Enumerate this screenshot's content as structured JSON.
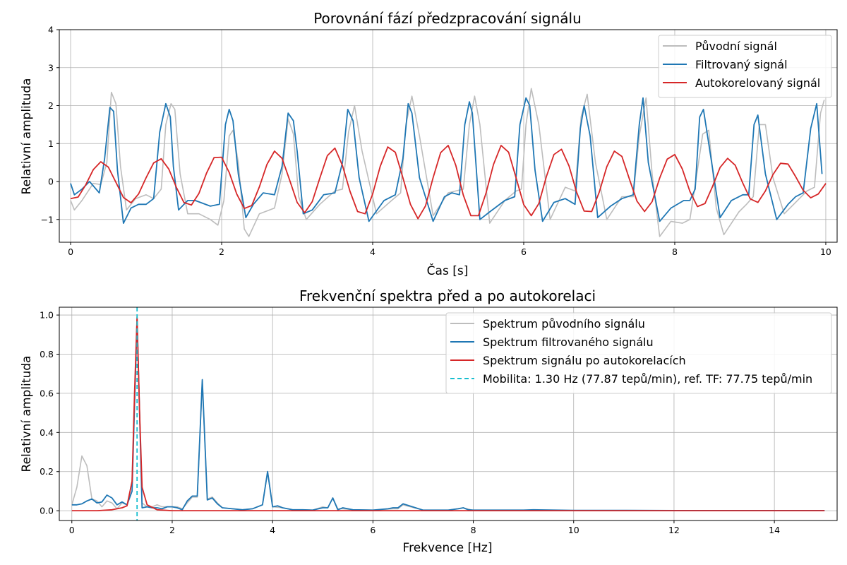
{
  "chart_data": [
    {
      "type": "line",
      "title": "Porovnání fází předzpracování signálu",
      "xlabel": "Čas [s]",
      "ylabel": "Relativní amplituda",
      "xlim": [
        -0.15,
        10.15
      ],
      "ylim": [
        -1.6,
        4.0
      ],
      "x_ticks": [
        0,
        2,
        4,
        6,
        8,
        10
      ],
      "y_ticks": [
        -1,
        0,
        1,
        2,
        3,
        4
      ],
      "x_tick_labels": [
        "0",
        "2",
        "4",
        "6",
        "8",
        "10"
      ],
      "y_tick_labels": [
        "−1",
        "0",
        "1",
        "2",
        "3",
        "4"
      ],
      "grid": true,
      "legend_position": "top-right",
      "series": [
        {
          "name": "Původní signál",
          "color": "#bdbdbd",
          "x": [
            0.0,
            0.05,
            0.15,
            0.3,
            0.4,
            0.48,
            0.54,
            0.6,
            0.66,
            0.74,
            0.86,
            1.0,
            1.1,
            1.2,
            1.26,
            1.33,
            1.38,
            1.45,
            1.55,
            1.7,
            1.85,
            1.95,
            2.03,
            2.1,
            2.15,
            2.22,
            2.3,
            2.36,
            2.5,
            2.7,
            2.8,
            2.88,
            2.95,
            3.02,
            3.12,
            3.3,
            3.5,
            3.6,
            3.68,
            3.76,
            3.86,
            4.05,
            4.25,
            4.37,
            4.44,
            4.52,
            4.62,
            4.8,
            5.0,
            5.1,
            5.2,
            5.28,
            5.35,
            5.42,
            5.55,
            5.75,
            5.9,
            5.97,
            6.03,
            6.1,
            6.2,
            6.35,
            6.55,
            6.68,
            6.76,
            6.84,
            6.95,
            7.1,
            7.3,
            7.45,
            7.53,
            7.62,
            7.7,
            7.8,
            7.95,
            8.1,
            8.2,
            8.3,
            8.37,
            8.45,
            8.55,
            8.65,
            8.85,
            8.95,
            9.04,
            9.12,
            9.2,
            9.3,
            9.45,
            9.6,
            9.75,
            9.85,
            9.93,
            9.98
          ],
          "y": [
            -0.5,
            -0.75,
            -0.5,
            -0.05,
            -0.08,
            0.5,
            2.35,
            2.05,
            0.4,
            -0.75,
            -0.45,
            -0.35,
            -0.45,
            -0.2,
            1.5,
            2.05,
            1.9,
            0.2,
            -0.85,
            -0.85,
            -1.0,
            -1.15,
            -0.5,
            1.2,
            1.35,
            0.5,
            -1.25,
            -1.45,
            -0.85,
            -0.7,
            0.2,
            1.65,
            1.25,
            -0.4,
            -1.0,
            -0.6,
            -0.25,
            -0.2,
            1.3,
            2.0,
            0.8,
            -0.85,
            -0.5,
            -0.3,
            1.5,
            2.25,
            1.2,
            -0.9,
            -0.3,
            -0.25,
            -0.2,
            1.5,
            2.25,
            1.5,
            -1.1,
            -0.5,
            -0.25,
            -0.2,
            1.5,
            2.45,
            1.5,
            -1.0,
            -0.15,
            -0.25,
            1.7,
            2.3,
            0.5,
            -1.0,
            -0.4,
            -0.4,
            1.2,
            2.2,
            0.2,
            -1.45,
            -1.05,
            -1.1,
            -1.0,
            0.3,
            1.25,
            1.35,
            -0.7,
            -1.4,
            -0.8,
            -0.6,
            -0.4,
            1.5,
            1.5,
            0.1,
            -0.85,
            -0.55,
            -0.25,
            -0.15,
            1.8,
            2.15
          ]
        },
        {
          "name": "Filtrovaný signál",
          "color": "#1f77b4",
          "x": [
            0.0,
            0.05,
            0.15,
            0.25,
            0.38,
            0.45,
            0.52,
            0.57,
            0.62,
            0.7,
            0.8,
            0.9,
            1.0,
            1.1,
            1.18,
            1.26,
            1.32,
            1.36,
            1.43,
            1.55,
            1.65,
            1.85,
            1.97,
            2.05,
            2.1,
            2.15,
            2.22,
            2.32,
            2.42,
            2.55,
            2.7,
            2.8,
            2.88,
            2.95,
            3.0,
            3.08,
            3.2,
            3.35,
            3.5,
            3.6,
            3.67,
            3.74,
            3.82,
            3.95,
            4.15,
            4.3,
            4.4,
            4.47,
            4.52,
            4.62,
            4.8,
            4.95,
            5.05,
            5.15,
            5.22,
            5.28,
            5.32,
            5.42,
            5.55,
            5.75,
            5.88,
            5.95,
            6.03,
            6.08,
            6.15,
            6.25,
            6.4,
            6.55,
            6.68,
            6.75,
            6.8,
            6.88,
            6.98,
            7.15,
            7.3,
            7.45,
            7.53,
            7.58,
            7.65,
            7.8,
            7.95,
            8.12,
            8.2,
            8.27,
            8.33,
            8.38,
            8.45,
            8.6,
            8.75,
            8.9,
            8.98,
            9.05,
            9.1,
            9.2,
            9.35,
            9.5,
            9.6,
            9.7,
            9.8,
            9.88,
            9.95
          ],
          "y": [
            -0.05,
            -0.35,
            -0.2,
            0.0,
            -0.3,
            0.6,
            1.95,
            1.85,
            0.3,
            -1.1,
            -0.7,
            -0.6,
            -0.6,
            -0.45,
            1.3,
            2.05,
            1.7,
            0.4,
            -0.75,
            -0.5,
            -0.5,
            -0.65,
            -0.6,
            1.5,
            1.9,
            1.6,
            0.2,
            -0.95,
            -0.6,
            -0.3,
            -0.35,
            0.4,
            1.8,
            1.6,
            0.8,
            -0.85,
            -0.75,
            -0.35,
            -0.3,
            0.5,
            1.9,
            1.6,
            0.1,
            -1.05,
            -0.5,
            -0.35,
            0.6,
            2.05,
            1.8,
            0.1,
            -1.05,
            -0.4,
            -0.3,
            -0.35,
            1.5,
            2.1,
            1.8,
            -1.0,
            -0.8,
            -0.5,
            -0.4,
            1.5,
            2.2,
            2.0,
            0.3,
            -1.05,
            -0.55,
            -0.45,
            -0.6,
            1.4,
            2.0,
            1.2,
            -0.95,
            -0.65,
            -0.45,
            -0.35,
            1.5,
            2.2,
            0.5,
            -1.05,
            -0.7,
            -0.5,
            -0.5,
            -0.2,
            1.7,
            1.9,
            1.0,
            -0.95,
            -0.5,
            -0.35,
            -0.35,
            1.5,
            1.75,
            0.2,
            -1.0,
            -0.6,
            -0.4,
            -0.3,
            1.4,
            2.05,
            0.2
          ]
        },
        {
          "name": "Autokorelovaný signál",
          "color": "#d62728",
          "x": [
            0.0,
            0.1,
            0.2,
            0.3,
            0.4,
            0.5,
            0.6,
            0.7,
            0.8,
            0.9,
            1.0,
            1.1,
            1.2,
            1.3,
            1.4,
            1.5,
            1.6,
            1.7,
            1.8,
            1.9,
            2.0,
            2.1,
            2.2,
            2.3,
            2.4,
            2.5,
            2.6,
            2.7,
            2.8,
            2.9,
            3.0,
            3.1,
            3.2,
            3.3,
            3.4,
            3.5,
            3.6,
            3.7,
            3.8,
            3.9,
            4.0,
            4.1,
            4.2,
            4.3,
            4.4,
            4.5,
            4.6,
            4.7,
            4.8,
            4.9,
            5.0,
            5.1,
            5.2,
            5.3,
            5.4,
            5.5,
            5.6,
            5.7,
            5.8,
            5.9,
            6.0,
            6.1,
            6.2,
            6.3,
            6.4,
            6.5,
            6.6,
            6.7,
            6.8,
            6.9,
            7.0,
            7.1,
            7.2,
            7.3,
            7.4,
            7.5,
            7.6,
            7.7,
            7.8,
            7.9,
            8.0,
            8.1,
            8.2,
            8.3,
            8.4,
            8.5,
            8.6,
            8.7,
            8.8,
            8.9,
            9.0,
            9.1,
            9.2,
            9.3,
            9.4,
            9.5,
            9.6,
            9.7,
            9.8,
            9.9,
            10.0
          ],
          "y": [
            -0.45,
            -0.41,
            -0.09,
            0.31,
            0.52,
            0.38,
            -0.02,
            -0.42,
            -0.56,
            -0.33,
            0.1,
            0.49,
            0.6,
            0.33,
            -0.15,
            -0.55,
            -0.62,
            -0.31,
            0.22,
            0.63,
            0.64,
            0.24,
            -0.33,
            -0.71,
            -0.63,
            -0.14,
            0.45,
            0.8,
            0.61,
            0.04,
            -0.55,
            -0.82,
            -0.53,
            0.09,
            0.68,
            0.88,
            0.42,
            -0.26,
            -0.79,
            -0.85,
            -0.33,
            0.4,
            0.91,
            0.77,
            0.1,
            -0.6,
            -0.98,
            -0.64,
            0.1,
            0.76,
            0.95,
            0.43,
            -0.36,
            -0.9,
            -0.9,
            -0.31,
            0.45,
            0.95,
            0.77,
            0.09,
            -0.61,
            -0.9,
            -0.58,
            0.13,
            0.71,
            0.85,
            0.41,
            -0.28,
            -0.78,
            -0.79,
            -0.28,
            0.39,
            0.8,
            0.66,
            0.06,
            -0.52,
            -0.79,
            -0.53,
            0.09,
            0.59,
            0.71,
            0.33,
            -0.26,
            -0.66,
            -0.58,
            -0.13,
            0.37,
            0.61,
            0.43,
            -0.04,
            -0.46,
            -0.55,
            -0.25,
            0.18,
            0.48,
            0.46,
            0.13,
            -0.23,
            -0.43,
            -0.33,
            -0.05
          ]
        }
      ]
    },
    {
      "type": "line",
      "title": "Frekvenční spektra před a po autokorelaci",
      "xlabel": "Frekvence [Hz]",
      "ylabel": "Relativní amplituda",
      "xlim": [
        -0.25,
        15.25
      ],
      "ylim": [
        -0.05,
        1.04
      ],
      "x_ticks": [
        0,
        2,
        4,
        6,
        8,
        10,
        12,
        14
      ],
      "y_ticks": [
        0.0,
        0.2,
        0.4,
        0.6,
        0.8,
        1.0
      ],
      "x_tick_labels": [
        "0",
        "2",
        "4",
        "6",
        "8",
        "10",
        "12",
        "14"
      ],
      "y_tick_labels": [
        "0.0",
        "0.2",
        "0.4",
        "0.6",
        "0.8",
        "1.0"
      ],
      "grid": true,
      "legend_position": "top-right",
      "series": [
        {
          "name": "Spektrum původního signálu",
          "color": "#bdbdbd",
          "x": [
            0.0,
            0.1,
            0.2,
            0.3,
            0.4,
            0.5,
            0.6,
            0.7,
            0.8,
            0.9,
            1.0,
            1.1,
            1.2,
            1.3,
            1.4,
            1.5,
            1.6,
            1.7,
            1.8,
            1.9,
            2.0,
            2.1,
            2.2,
            2.3,
            2.4,
            2.5,
            2.6,
            2.7,
            2.8,
            2.9,
            3.0,
            3.2,
            3.4,
            3.6,
            3.8,
            3.9,
            4.0,
            4.2,
            4.4,
            4.6,
            4.8,
            5.0,
            5.1,
            5.2,
            5.3,
            5.4,
            5.6,
            6.0,
            6.4,
            6.5,
            6.6,
            7.0,
            7.5,
            7.8,
            8.0,
            9.0,
            10.0,
            11.0,
            12.0,
            13.0,
            14.0,
            15.0
          ],
          "y": [
            0.03,
            0.12,
            0.28,
            0.23,
            0.06,
            0.05,
            0.02,
            0.05,
            0.04,
            0.01,
            0.04,
            0.03,
            0.15,
            0.97,
            0.04,
            0.02,
            0.02,
            0.03,
            0.02,
            0.02,
            0.02,
            0.02,
            0.01,
            0.04,
            0.07,
            0.07,
            0.66,
            0.06,
            0.07,
            0.04,
            0.015,
            0.01,
            0.005,
            0.01,
            0.03,
            0.2,
            0.02,
            0.015,
            0.005,
            0.005,
            0.003,
            0.02,
            0.015,
            0.065,
            0.01,
            0.01,
            0.005,
            0.003,
            0.01,
            0.01,
            0.03,
            0.003,
            0.003,
            0.015,
            0.002,
            0.002,
            0.001,
            0.001,
            0.001,
            0.001,
            0.001,
            0.001
          ]
        },
        {
          "name": "Spektrum filtrovaného signálu",
          "color": "#1f77b4",
          "x": [
            0.0,
            0.1,
            0.2,
            0.3,
            0.4,
            0.5,
            0.6,
            0.7,
            0.8,
            0.9,
            1.0,
            1.1,
            1.2,
            1.3,
            1.4,
            1.5,
            1.6,
            1.7,
            1.8,
            1.9,
            2.0,
            2.1,
            2.2,
            2.3,
            2.4,
            2.5,
            2.6,
            2.7,
            2.8,
            2.9,
            3.0,
            3.2,
            3.4,
            3.6,
            3.8,
            3.9,
            4.0,
            4.1,
            4.2,
            4.4,
            4.6,
            4.8,
            5.0,
            5.1,
            5.2,
            5.3,
            5.4,
            5.6,
            6.0,
            6.3,
            6.4,
            6.5,
            6.6,
            7.0,
            7.5,
            7.7,
            7.8,
            7.9,
            8.0,
            9.0,
            9.2,
            10.0,
            11.0,
            12.0,
            13.0,
            14.0,
            15.0
          ],
          "y": [
            0.03,
            0.03,
            0.035,
            0.05,
            0.06,
            0.04,
            0.045,
            0.08,
            0.065,
            0.03,
            0.045,
            0.03,
            0.1,
            0.98,
            0.015,
            0.02,
            0.015,
            0.015,
            0.01,
            0.02,
            0.02,
            0.015,
            0.005,
            0.05,
            0.075,
            0.075,
            0.67,
            0.055,
            0.065,
            0.035,
            0.015,
            0.01,
            0.005,
            0.01,
            0.03,
            0.2,
            0.02,
            0.025,
            0.015,
            0.005,
            0.005,
            0.003,
            0.015,
            0.015,
            0.065,
            0.005,
            0.015,
            0.005,
            0.003,
            0.01,
            0.015,
            0.015,
            0.035,
            0.003,
            0.003,
            0.01,
            0.015,
            0.005,
            0.003,
            0.003,
            0.005,
            0.002,
            0.002,
            0.001,
            0.001,
            0.001,
            0.001
          ]
        },
        {
          "name": "Spektrum signálu po autokorelacích",
          "color": "#d62728",
          "x": [
            0.0,
            0.5,
            0.8,
            1.0,
            1.1,
            1.2,
            1.25,
            1.3,
            1.35,
            1.4,
            1.5,
            1.7,
            2.0,
            3.0,
            5.0,
            10.0,
            15.0
          ],
          "y": [
            0.0,
            0.0,
            0.005,
            0.015,
            0.025,
            0.15,
            0.6,
            0.99,
            0.5,
            0.12,
            0.03,
            0.005,
            0.0,
            0.0,
            0.0,
            0.0,
            0.0
          ]
        }
      ],
      "vline": {
        "x": 1.3,
        "color": "#17becf",
        "style": "dashed",
        "name": "Mobilita: 1.30 Hz (77.87 tepů/min), ref. TF: 77.75 tepů/min"
      }
    }
  ]
}
